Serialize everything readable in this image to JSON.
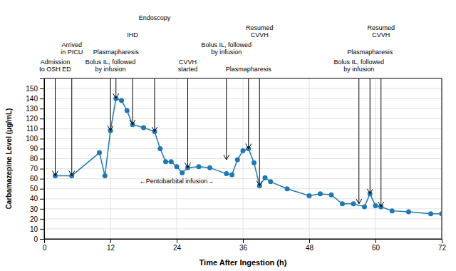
{
  "chart_data": {
    "type": "line",
    "x": [
      2,
      5,
      10,
      11,
      12,
      13,
      14,
      15,
      16,
      18,
      20,
      21,
      22,
      23,
      24,
      25,
      26,
      28,
      30,
      33,
      34,
      35,
      36,
      37,
      38,
      39,
      40,
      41,
      44,
      48,
      50,
      52,
      54,
      56,
      58,
      59,
      60,
      61,
      63,
      66,
      70,
      72
    ],
    "values": [
      63,
      63,
      86,
      63,
      108,
      140,
      138,
      128,
      114,
      111,
      107,
      90,
      77,
      77,
      72,
      66,
      71,
      72,
      71,
      65,
      64,
      79,
      88,
      90,
      76,
      53,
      61,
      57,
      50,
      43,
      45,
      44,
      35,
      35,
      32,
      45,
      33,
      32,
      28,
      27,
      25,
      25
    ],
    "marker": "circle",
    "xlim": [
      0,
      72
    ],
    "ylim": [
      0,
      160
    ],
    "xticks": [
      0,
      12,
      24,
      36,
      48,
      60,
      72
    ],
    "yticks": [
      0,
      10,
      20,
      30,
      40,
      50,
      60,
      70,
      80,
      90,
      100,
      110,
      120,
      130,
      140,
      150
    ],
    "xlabel": "Time After Ingestion (h)",
    "ylabel": "Carbamazepine Level (μg/mL)",
    "grid": true,
    "annotations": [
      {
        "text": "Admission\nto OSH ED",
        "x": 2,
        "y": 63
      },
      {
        "text": "Arrived\nin PICU",
        "x": 5,
        "y": 63
      },
      {
        "text": "Bolus IL, followed\nby infusion",
        "x": 12,
        "y": 108
      },
      {
        "text": "Plasmapharesis",
        "x": 13,
        "y": 140
      },
      {
        "text": "IHD",
        "x": 16,
        "y": 114
      },
      {
        "text": "Endoscopy",
        "x": 20,
        "y": 107
      },
      {
        "text": "CVVH\nstarted",
        "x": 26,
        "y": 71
      },
      {
        "text": "Bolus IL, followed\nby infusion",
        "x": 33,
        "y": 79
      },
      {
        "text": "Plasmapharesis",
        "x": 37,
        "y": 90
      },
      {
        "text": "Resumed\nCVVH",
        "x": 39,
        "y": 53
      },
      {
        "text": "Bolus IL, followed\nby infusion",
        "x": 57,
        "y": 35
      },
      {
        "text": "Plasmapharesis",
        "x": 59,
        "y": 45
      },
      {
        "text": "Resumed\nCVVH",
        "x": 61,
        "y": 32
      }
    ],
    "text_annotations": [
      {
        "text": "←Pentobarbital infusion→",
        "x": 24,
        "y": 57
      }
    ]
  }
}
